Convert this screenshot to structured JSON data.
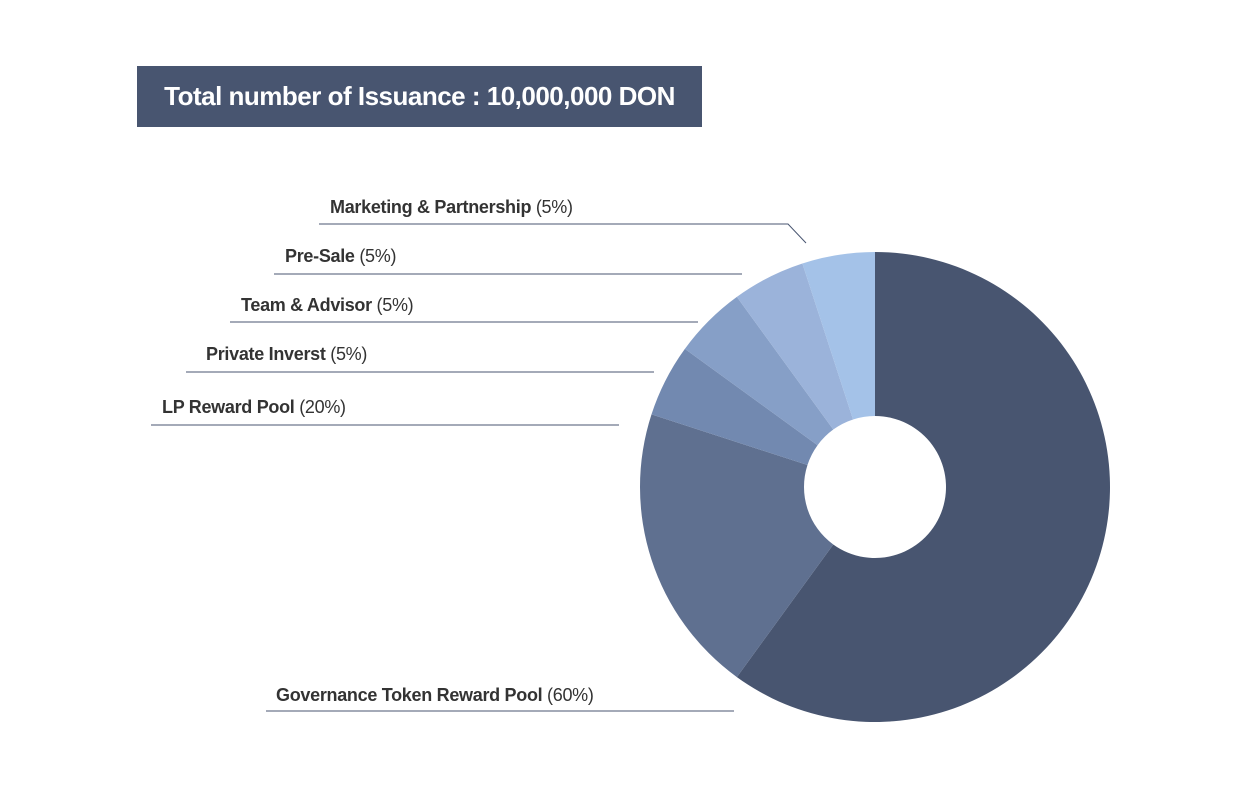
{
  "header": {
    "title": "Total number of Issuance : 10,000,000 DON"
  },
  "chart_data": {
    "type": "pie",
    "variant": "donut",
    "title": "Total number of Issuance : 10,000,000 DON",
    "categories": [
      "Governance Token Reward Pool",
      "LP Reward Pool",
      "Private Inverst",
      "Team & Advisor",
      "Pre-Sale",
      "Marketing & Partnership"
    ],
    "values": [
      60,
      20,
      5,
      5,
      5,
      5
    ],
    "value_labels": [
      "(60%)",
      "(20%)",
      "(5%)",
      "(5%)",
      "(5%)",
      "(5%)"
    ],
    "colors": [
      "#485570",
      "#5f7090",
      "#7289b0",
      "#869fc7",
      "#9bb3da",
      "#a4c2e8"
    ],
    "legend": "callout-left",
    "text_color": "#333333",
    "leader_color": "#485570"
  }
}
